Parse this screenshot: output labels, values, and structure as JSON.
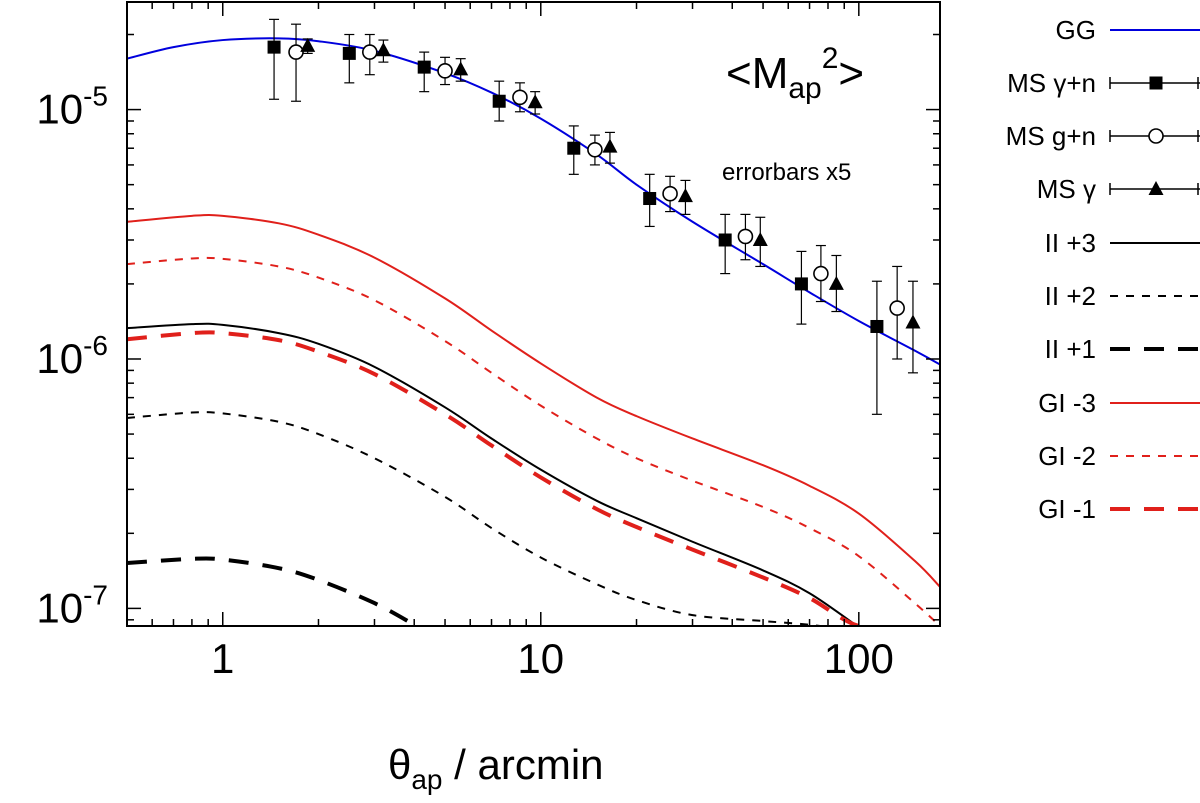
{
  "chart_data": {
    "type": "line",
    "xlabel": {
      "theta": "θ",
      "sub": "ap",
      "rest": " / arcmin"
    },
    "annotation": {
      "pre": "<M",
      "sub": "ap",
      "sup": "2",
      "post": ">"
    },
    "errorbar_note": "errorbars x5",
    "xscale": "log",
    "yscale": "log",
    "xlim": [
      0.5,
      180
    ],
    "ylim": [
      8.5e-08,
      2.7e-05
    ],
    "xticks": [
      {
        "value": 1,
        "label": "1"
      },
      {
        "value": 10,
        "label": "10"
      },
      {
        "value": 100,
        "label": "100"
      }
    ],
    "yticks": [
      {
        "value": 1e-07,
        "base": "10",
        "exp": "-7"
      },
      {
        "value": 1e-06,
        "base": "10",
        "exp": "-6"
      },
      {
        "value": 1e-05,
        "base": "10",
        "exp": "-5"
      }
    ],
    "grid": false,
    "legend_position": "right-outside",
    "series": [
      {
        "name": "GG",
        "kind": "line",
        "color": "#0000dd",
        "style": "solid",
        "width": 2,
        "x": [
          0.5,
          0.7,
          1,
          1.5,
          2,
          3,
          5,
          7,
          10,
          15,
          20,
          30,
          50,
          70,
          100,
          150,
          180
        ],
        "y": [
          1.6e-05,
          1.78e-05,
          1.9e-05,
          1.93e-05,
          1.88e-05,
          1.72e-05,
          1.4e-05,
          1.17e-05,
          9.2e-06,
          6.6e-06,
          5e-06,
          3.55e-06,
          2.4e-06,
          1.85e-06,
          1.42e-06,
          1.08e-06,
          9.5e-07
        ]
      },
      {
        "name": "MS γ+n",
        "kind": "points",
        "marker": "square-filled",
        "color": "#000000",
        "x": [
          1.45,
          2.5,
          4.3,
          7.4,
          12.7,
          22,
          38,
          66,
          114
        ],
        "y": [
          1.78e-05,
          1.68e-05,
          1.48e-05,
          1.08e-05,
          7e-06,
          4.4e-06,
          3e-06,
          2e-06,
          1.35e-06
        ],
        "err_low": [
          1.1e-05,
          1.28e-05,
          1.18e-05,
          9e-06,
          5.5e-06,
          3.4e-06,
          2.2e-06,
          1.38e-06,
          6e-07
        ],
        "err_high": [
          2.3e-05,
          2e-05,
          1.7e-05,
          1.3e-05,
          8.6e-06,
          5.5e-06,
          3.8e-06,
          2.7e-06,
          2.05e-06
        ]
      },
      {
        "name": "MS g+n",
        "kind": "points",
        "marker": "circle-open",
        "color": "#000000",
        "x": [
          1.7,
          2.9,
          5.0,
          8.6,
          14.8,
          25.5,
          44,
          76,
          132
        ],
        "y": [
          1.7e-05,
          1.7e-05,
          1.43e-05,
          1.12e-05,
          6.9e-06,
          4.6e-06,
          3.1e-06,
          2.2e-06,
          1.6e-06
        ],
        "err_low": [
          1.08e-05,
          1.38e-05,
          1.26e-05,
          9.8e-06,
          6e-06,
          3.9e-06,
          2.5e-06,
          1.7e-06,
          1e-06
        ],
        "err_high": [
          2.2e-05,
          2e-05,
          1.62e-05,
          1.28e-05,
          7.9e-06,
          5.4e-06,
          3.8e-06,
          2.85e-06,
          2.35e-06
        ]
      },
      {
        "name": "MS γ",
        "kind": "points",
        "marker": "triangle-filled",
        "color": "#000000",
        "x": [
          1.85,
          3.2,
          5.6,
          9.6,
          16.5,
          28.5,
          49,
          85,
          148
        ],
        "y": [
          1.8e-05,
          1.73e-05,
          1.45e-05,
          1.07e-05,
          7.1e-06,
          4.5e-06,
          3e-06,
          2e-06,
          1.4e-06
        ],
        "err_low": [
          1.68e-05,
          1.55e-05,
          1.3e-05,
          9.6e-06,
          6.1e-06,
          3.8e-06,
          2.35e-06,
          1.55e-06,
          8.8e-07
        ],
        "err_high": [
          1.92e-05,
          1.9e-05,
          1.6e-05,
          1.18e-05,
          8.1e-06,
          5.2e-06,
          3.7e-06,
          2.6e-06,
          2.05e-06
        ]
      },
      {
        "name": "II +3",
        "kind": "line",
        "color": "#000000",
        "style": "solid",
        "width": 2,
        "x": [
          0.5,
          0.8,
          1,
          1.5,
          2,
          3,
          5,
          7,
          10,
          15,
          20,
          30,
          50,
          70,
          100
        ],
        "y": [
          1.33e-06,
          1.38e-06,
          1.37e-06,
          1.27e-06,
          1.15e-06,
          9.3e-07,
          6.4e-07,
          4.8e-07,
          3.6e-07,
          2.7e-07,
          2.3e-07,
          1.85e-07,
          1.42e-07,
          1.15e-07,
          8.4e-08
        ]
      },
      {
        "name": "II +2",
        "kind": "line",
        "color": "#000000",
        "style": "dash-short",
        "width": 2,
        "x": [
          0.5,
          0.8,
          1,
          1.5,
          2,
          3,
          5,
          7,
          10,
          15,
          20,
          30,
          50,
          70,
          80
        ],
        "y": [
          5.8e-07,
          6.1e-07,
          6.05e-07,
          5.6e-07,
          5e-07,
          4e-07,
          2.8e-07,
          2.1e-07,
          1.6e-07,
          1.25e-07,
          1.08e-07,
          9.4e-08,
          8.9e-08,
          8.6e-08,
          8.4e-08
        ]
      },
      {
        "name": "II +1",
        "kind": "line",
        "color": "#000000",
        "style": "dash-long",
        "width": 4,
        "x": [
          0.5,
          0.8,
          1,
          1.5,
          2,
          3,
          4
        ],
        "y": [
          1.52e-07,
          1.58e-07,
          1.57e-07,
          1.45e-07,
          1.3e-07,
          1.05e-07,
          8.6e-08
        ]
      },
      {
        "name": "GI -3",
        "kind": "line",
        "color": "#e0201b",
        "style": "solid",
        "width": 2,
        "x": [
          0.5,
          0.8,
          1,
          1.5,
          2,
          3,
          5,
          7,
          10,
          15,
          20,
          30,
          50,
          70,
          100,
          150,
          180
        ],
        "y": [
          3.55e-06,
          3.75e-06,
          3.75e-06,
          3.5e-06,
          3.15e-06,
          2.55e-06,
          1.75e-06,
          1.3e-06,
          9.6e-07,
          7e-07,
          5.9e-07,
          4.8e-07,
          3.75e-07,
          3.1e-07,
          2.4e-07,
          1.55e-07,
          1.22e-07
        ]
      },
      {
        "name": "GI -2",
        "kind": "line",
        "color": "#e0201b",
        "style": "dash-short",
        "width": 2,
        "x": [
          0.5,
          0.8,
          1,
          1.5,
          2,
          3,
          5,
          7,
          10,
          15,
          20,
          30,
          50,
          70,
          100,
          150,
          180
        ],
        "y": [
          2.4e-06,
          2.53e-06,
          2.52e-06,
          2.35e-06,
          2.12e-06,
          1.72e-06,
          1.18e-06,
          8.8e-07,
          6.5e-07,
          4.8e-07,
          4e-07,
          3.25e-07,
          2.55e-07,
          2.1e-07,
          1.62e-07,
          1.05e-07,
          8.5e-08
        ]
      },
      {
        "name": "GI -1",
        "kind": "line",
        "color": "#e0201b",
        "style": "dash-long",
        "width": 4,
        "x": [
          0.5,
          0.8,
          1,
          1.5,
          2,
          3,
          5,
          7,
          10,
          15,
          20,
          30,
          50,
          70,
          100,
          150,
          180
        ],
        "y": [
          1.2e-06,
          1.27e-06,
          1.27e-06,
          1.19e-06,
          1.07e-06,
          8.7e-07,
          6e-07,
          4.5e-07,
          3.35e-07,
          2.5e-07,
          2.12e-07,
          1.72e-07,
          1.33e-07,
          1.1e-07,
          8.5e-08,
          8.3e-08,
          8.2e-08
        ]
      }
    ]
  }
}
